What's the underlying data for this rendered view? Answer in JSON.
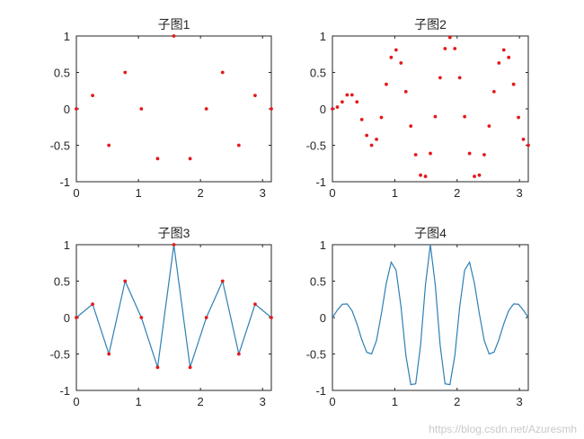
{
  "watermark": "https://blog.csdn.net/Azuresmh",
  "colors": {
    "points": "#e31a1c",
    "line": "#2f7fb5",
    "axes": "#262626",
    "background": "#ffffff"
  },
  "chart_data": [
    {
      "type": "scatter",
      "title": "子图1",
      "xlim": [
        0,
        3.1416
      ],
      "ylim": [
        -1,
        1
      ],
      "xticks": [
        0,
        1,
        2,
        3
      ],
      "xtick_labels": [
        "0",
        "1",
        "2",
        "3"
      ],
      "yticks": [
        -1,
        -0.5,
        0,
        0.5,
        1
      ],
      "ytick_labels": [
        "-1",
        "-0.5",
        "0",
        "0.5",
        "1"
      ],
      "grid": false,
      "series": [
        {
          "kind": "points",
          "x": [
            0,
            0.2618,
            0.5236,
            0.7854,
            1.0472,
            1.309,
            1.5708,
            1.8326,
            2.0944,
            2.3562,
            2.618,
            2.8798,
            3.1416
          ],
          "y": [
            0,
            0.183,
            -0.5,
            0.5,
            0,
            -0.683,
            1,
            -0.683,
            0,
            0.5,
            -0.5,
            0.183,
            0
          ]
        }
      ]
    },
    {
      "type": "scatter",
      "title": "子图2",
      "xlim": [
        0,
        3.1416
      ],
      "ylim": [
        -1,
        1
      ],
      "xticks": [
        0,
        1,
        2,
        3
      ],
      "xtick_labels": [
        "0",
        "1",
        "2",
        "3"
      ],
      "yticks": [
        -1,
        -0.5,
        0,
        0.5,
        1
      ],
      "ytick_labels": [
        "-1",
        "-0.5",
        "0",
        "0.5",
        "1"
      ],
      "grid": false,
      "series": [
        {
          "kind": "points",
          "x": [
            0,
            0.0785,
            0.1571,
            0.2356,
            0.3142,
            0.3927,
            0.4712,
            0.5498,
            0.6283,
            0.7069,
            0.7854,
            0.8639,
            0.9425,
            1.021,
            1.0996,
            1.1781,
            1.2566,
            1.3352,
            1.4137,
            1.4923,
            1.5708,
            1.6493,
            1.7279,
            1.8064,
            1.885,
            1.9635,
            2.042,
            2.1206,
            2.1991,
            2.2777,
            2.3562,
            2.4347,
            2.5133,
            2.5918,
            2.6704,
            2.7489,
            2.8274,
            2.906,
            2.9845,
            3.0631,
            3.1416
          ],
          "y": [
            0,
            0.024,
            0.095,
            0.191,
            0.191,
            0.095,
            -0.147,
            -0.364,
            -0.5,
            -0.418,
            -0.118,
            0.337,
            0.706,
            0.809,
            0.63,
            0.236,
            -0.236,
            -0.63,
            -0.91,
            -0.927,
            -0.612,
            -0.107,
            0.427,
            0.827,
            0.98,
            0.827,
            0.427,
            -0.107,
            -0.612,
            -0.927,
            -0.91,
            -0.63,
            -0.236,
            0.236,
            0.63,
            0.809,
            0.706,
            0.337,
            -0.118,
            -0.418,
            -0.5
          ]
        }
      ]
    },
    {
      "type": "line",
      "title": "子图3",
      "xlim": [
        0,
        3.1416
      ],
      "ylim": [
        -1,
        1
      ],
      "xticks": [
        0,
        1,
        2,
        3
      ],
      "xtick_labels": [
        "0",
        "1",
        "2",
        "3"
      ],
      "yticks": [
        -1,
        -0.5,
        0,
        0.5,
        1
      ],
      "ytick_labels": [
        "-1",
        "-0.5",
        "0",
        "0.5",
        "1"
      ],
      "grid": false,
      "series": [
        {
          "kind": "line",
          "x": [
            0,
            0.2618,
            0.5236,
            0.7854,
            1.0472,
            1.309,
            1.5708,
            1.8326,
            2.0944,
            2.3562,
            2.618,
            2.8798,
            3.1416
          ],
          "y": [
            0,
            0.183,
            -0.5,
            0.5,
            0,
            -0.683,
            1,
            -0.683,
            0,
            0.5,
            -0.5,
            0.183,
            0
          ]
        },
        {
          "kind": "points",
          "x": [
            0,
            0.2618,
            0.5236,
            0.7854,
            1.0472,
            1.309,
            1.5708,
            1.8326,
            2.0944,
            2.3562,
            2.618,
            2.8798,
            3.1416
          ],
          "y": [
            0,
            0.183,
            -0.5,
            0.5,
            0,
            -0.683,
            1,
            -0.683,
            0,
            0.5,
            -0.5,
            0.183,
            0
          ]
        }
      ]
    },
    {
      "type": "line",
      "title": "子图4",
      "xlim": [
        0,
        3.1416
      ],
      "ylim": [
        -1,
        1
      ],
      "xticks": [
        0,
        1,
        2,
        3
      ],
      "xtick_labels": [
        "0",
        "1",
        "2",
        "3"
      ],
      "yticks": [
        -1,
        -0.5,
        0,
        0.5,
        1
      ],
      "ytick_labels": [
        "-1",
        "-0.5",
        "0",
        "0.5",
        "1"
      ],
      "grid": false,
      "series": [
        {
          "kind": "line",
          "x": [
            0,
            0.0785,
            0.1571,
            0.2356,
            0.3142,
            0.3927,
            0.4712,
            0.5498,
            0.6283,
            0.7069,
            0.7854,
            0.8639,
            0.9425,
            1.021,
            1.0996,
            1.1781,
            1.2566,
            1.3352,
            1.4137,
            1.4923,
            1.5708,
            1.6493,
            1.7279,
            1.8064,
            1.885,
            1.9635,
            2.042,
            2.1206,
            2.1991,
            2.2777,
            2.3562,
            2.4347,
            2.5133,
            2.5918,
            2.6704,
            2.7489,
            2.8274,
            2.906,
            2.9845,
            3.0631,
            3.1416
          ],
          "y": [
            0,
            0.101,
            0.182,
            0.187,
            0.095,
            -0.085,
            -0.304,
            -0.475,
            -0.5,
            -0.314,
            0.055,
            0.471,
            0.76,
            0.65,
            0.15,
            -0.52,
            -0.92,
            -0.91,
            -0.38,
            0.45,
            1.0,
            0.45,
            -0.38,
            -0.91,
            -0.92,
            -0.52,
            0.15,
            0.65,
            0.76,
            0.471,
            0.055,
            -0.314,
            -0.5,
            -0.475,
            -0.304,
            -0.085,
            0.095,
            0.187,
            0.182,
            0.101,
            0
          ]
        }
      ]
    }
  ]
}
